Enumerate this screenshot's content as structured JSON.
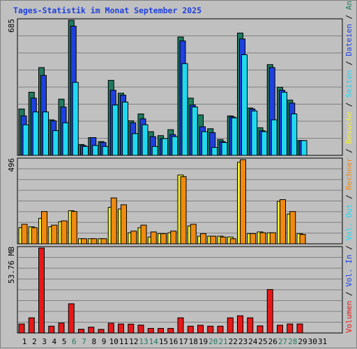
{
  "chart_data": {
    "type": "bar",
    "title": "Tages-Statistik im Monat September 2025",
    "categories": [
      "1",
      "2",
      "3",
      "4",
      "5",
      "6",
      "7",
      "8",
      "9",
      "10",
      "11",
      "12",
      "13",
      "14",
      "15",
      "16",
      "17",
      "18",
      "19",
      "20",
      "21",
      "22",
      "23",
      "24",
      "25",
      "26",
      "27",
      "28",
      "29",
      "30",
      "31"
    ],
    "weekend_days": [
      "6",
      "7",
      "13",
      "14",
      "20",
      "21",
      "27",
      "28"
    ],
    "panels": [
      {
        "id": "requests",
        "ymax_label": "685",
        "ymax": 685,
        "series": [
          {
            "name": "Anfragen",
            "color": "#1f7a5f",
            "values": [
              235,
              320,
              445,
              180,
              285,
              685,
              55,
              90,
              70,
              380,
              315,
              175,
              210,
              120,
              100,
              130,
              600,
              290,
              205,
              135,
              80,
              200,
              620,
              240,
              140,
              460,
              345,
              280,
              75
            ]
          },
          {
            "name": "Dateien",
            "color": "#1e40e0",
            "values": [
              200,
              290,
              405,
              175,
              245,
              655,
              50,
              90,
              65,
              330,
              305,
              165,
              185,
              95,
              85,
              105,
              580,
              255,
              145,
              115,
              70,
              195,
              590,
              235,
              125,
              445,
              330,
              265,
              75
            ]
          },
          {
            "name": "Seiten",
            "color": "#20d8f0",
            "values": [
              155,
              220,
              220,
              125,
              165,
              370,
              45,
              50,
              45,
              255,
              270,
              110,
              155,
              45,
              85,
              95,
              465,
              245,
              120,
              40,
              65,
              190,
              510,
              225,
              120,
              180,
              320,
              210,
              75
            ]
          }
        ]
      },
      {
        "id": "visits",
        "ymax_label": "496",
        "ymax": 496,
        "series": [
          {
            "name": "Besuche",
            "color": "#f0f030",
            "values": [
              95,
              100,
              150,
              100,
              130,
              195,
              30,
              30,
              30,
              215,
              205,
              65,
              95,
              40,
              60,
              65,
              405,
              105,
              45,
              45,
              45,
              40,
              480,
              60,
              70,
              65,
              250,
              175,
              60
            ]
          },
          {
            "name": "Rechner",
            "color": "#f08a10",
            "values": [
              115,
              95,
              190,
              110,
              135,
              190,
              30,
              30,
              30,
              270,
              230,
              75,
              110,
              70,
              60,
              75,
              395,
              115,
              60,
              45,
              40,
              30,
              495,
              60,
              65,
              65,
              260,
              190,
              55
            ]
          }
        ]
      },
      {
        "id": "volume",
        "ymax_label": "53.76 MB",
        "ymax": 53.76,
        "series": [
          {
            "name": "Volumen",
            "color": "#e81818",
            "values": [
              5.7,
              9.6,
              53.76,
              4.3,
              6.3,
              18.5,
              2.4,
              3.7,
              2.3,
              6.2,
              5.7,
              5.6,
              5.0,
              2.9,
              2.9,
              2.9,
              9.6,
              4.3,
              4.9,
              4.3,
              4.3,
              9.6,
              10.9,
              9.6,
              4.5,
              27.5,
              4.9,
              5.7,
              5.7
            ]
          },
          {
            "name": "Vol. In",
            "color": "#1e40e0",
            "values": [
              0,
              0,
              0,
              0,
              0,
              0,
              0,
              0,
              0,
              0,
              0,
              0,
              0,
              0,
              0,
              0,
              0,
              0,
              0,
              0,
              0,
              0,
              0,
              0,
              0,
              0,
              0,
              0,
              0
            ]
          },
          {
            "name": "Vol. Out",
            "color": "#20d8f0",
            "values": [
              0,
              0,
              0,
              0,
              0,
              0,
              0,
              0,
              0,
              0,
              0,
              0,
              0,
              0,
              0,
              0,
              0,
              0,
              0,
              0,
              0,
              0,
              0,
              0,
              0,
              0,
              0,
              0,
              0
            ]
          }
        ]
      }
    ],
    "right_legend": [
      {
        "text": "Anfragen",
        "color": "#1f7a5f"
      },
      {
        "text": "Dateien",
        "color": "#1e40e0"
      },
      {
        "text": "Seiten",
        "color": "#20d8f0"
      },
      {
        "text": "Besuche",
        "color": "#f0f030"
      },
      {
        "text": "Rechner",
        "color": "#f08a10"
      },
      {
        "text": "Vol. Out",
        "color": "#20d8f0"
      },
      {
        "text": "Vol. In",
        "color": "#1e40e0"
      },
      {
        "text": "Volumen",
        "color": "#e81818"
      }
    ],
    "legend_separator": "/",
    "grid": true,
    "colors": {
      "title": "#1e40e0",
      "weekday_label": "#000000",
      "weekend_label": "#1f7a5f",
      "grid": "#808080",
      "background": "#c0c0c0"
    }
  }
}
